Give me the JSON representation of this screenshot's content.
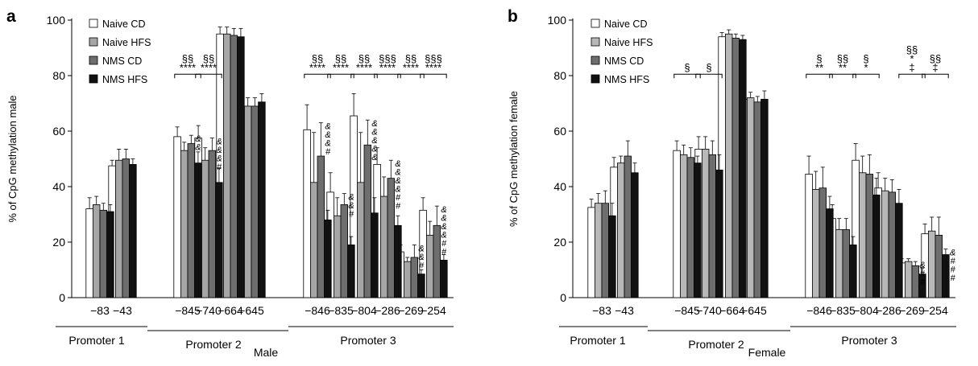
{
  "colors": {
    "male": [
      "#ffffff",
      "#a6a6a6",
      "#6e6e6e",
      "#111111"
    ],
    "female": [
      "#ffffff",
      "#b8b8b8",
      "#6e6e6e",
      "#111111"
    ]
  },
  "chart_data": [
    {
      "type": "bar",
      "panel_letter": "a",
      "title": "",
      "xlabel": "Male",
      "ylabel": "% of CpG methylation male",
      "ylim": [
        0,
        100
      ],
      "yticks": [
        0,
        20,
        40,
        60,
        80,
        100
      ],
      "legend_position": "top-left",
      "categories": [
        "−83",
        "−43",
        "−845",
        "−740",
        "−664",
        "−645",
        "−846",
        "−835",
        "−804",
        "−286",
        "−269",
        "−254"
      ],
      "series": [
        {
          "name": "Naive CD",
          "values": [
            32,
            47.5,
            58,
            57.5,
            95,
            69,
            60.5,
            38,
            65.5,
            48,
            16.5,
            31.5
          ],
          "errors": [
            4,
            2,
            3.5,
            4.5,
            2.5,
            3.5,
            9,
            7,
            8,
            6,
            2.5,
            4.5
          ]
        },
        {
          "name": "Naive HFS",
          "values": [
            33.5,
            49.5,
            53,
            49.5,
            95,
            69,
            41.5,
            29.5,
            41.5,
            36.5,
            13,
            22.5
          ],
          "errors": [
            3,
            4,
            3,
            4.5,
            2.5,
            3,
            18,
            6.5,
            18,
            7,
            1.5,
            5
          ]
        },
        {
          "name": "NMS CD",
          "values": [
            31.5,
            50,
            55.5,
            53,
            94.5,
            69,
            51,
            33.5,
            55,
            43,
            14.5,
            26
          ],
          "errors": [
            2.5,
            3.5,
            3,
            4.5,
            2.5,
            3,
            12,
            4,
            9,
            6.5,
            4.5,
            7
          ]
        },
        {
          "name": "NMS HFS",
          "values": [
            31,
            48,
            48.5,
            41.5,
            94,
            70.5,
            28,
            19,
            30.5,
            26,
            8.5,
            13.5
          ],
          "errors": [
            2.5,
            2,
            4,
            5,
            3,
            3,
            3.5,
            3,
            5.5,
            3.5,
            1.5,
            2
          ]
        }
      ],
      "comparison_brackets": [
        {
          "category_index": 2,
          "lines": [
            "§§",
            "****"
          ]
        },
        {
          "category_index": 3,
          "lines": [
            "§§",
            "****"
          ]
        },
        {
          "category_index": 6,
          "lines": [
            "§§",
            "****"
          ]
        },
        {
          "category_index": 7,
          "lines": [
            "§§",
            "****"
          ]
        },
        {
          "category_index": 8,
          "lines": [
            "§§",
            "****"
          ]
        },
        {
          "category_index": 9,
          "lines": [
            "§§§",
            "****"
          ]
        },
        {
          "category_index": 10,
          "lines": [
            "§§",
            "****"
          ]
        },
        {
          "category_index": 11,
          "lines": [
            "§§§",
            "****"
          ]
        }
      ],
      "bar_annotations": [
        {
          "category_index": 2,
          "series_index": 2,
          "symbols": [
            "&",
            "&"
          ]
        },
        {
          "category_index": 3,
          "series_index": 2,
          "symbols": [
            "&",
            "&",
            "&",
            "#"
          ]
        },
        {
          "category_index": 6,
          "series_index": 2,
          "symbols": [
            "&",
            "&",
            "&",
            "#"
          ]
        },
        {
          "category_index": 7,
          "series_index": 2,
          "symbols": [
            "&",
            "&",
            "#"
          ]
        },
        {
          "category_index": 8,
          "series_index": 2,
          "symbols": [
            "&",
            "&",
            "&",
            "&",
            "&"
          ]
        },
        {
          "category_index": 9,
          "series_index": 2,
          "symbols": [
            "&",
            "&",
            "&",
            "&",
            "#",
            "#"
          ]
        },
        {
          "category_index": 10,
          "series_index": 2,
          "symbols": [
            "&",
            "&",
            "#"
          ]
        },
        {
          "category_index": 11,
          "series_index": 2,
          "symbols": [
            "&",
            "&",
            "&",
            "&",
            "#",
            "#"
          ]
        }
      ],
      "promoter_groups": [
        {
          "label": "Promoter 1",
          "first": 0,
          "last": 1
        },
        {
          "label": "Promoter 2",
          "first": 2,
          "last": 5
        },
        {
          "label": "Promoter 3",
          "first": 6,
          "last": 11
        }
      ]
    },
    {
      "type": "bar",
      "panel_letter": "b",
      "title": "",
      "xlabel": "Female",
      "ylabel": "% of CpG methylation female",
      "ylim": [
        0,
        100
      ],
      "yticks": [
        0,
        20,
        40,
        60,
        80,
        100
      ],
      "legend_position": "top-left",
      "categories": [
        "−83",
        "−43",
        "−845",
        "−740",
        "−664",
        "−645",
        "−846",
        "−835",
        "−804",
        "−286",
        "−269",
        "−254"
      ],
      "series": [
        {
          "name": "Naive CD",
          "values": [
            32.5,
            47,
            53,
            53.5,
            94,
            71.5,
            44.5,
            28.5,
            49.5,
            39.5,
            12.5,
            23
          ],
          "errors": [
            3,
            3.5,
            3.5,
            4.5,
            1.5,
            2.5,
            6.5,
            5,
            6,
            5.5,
            1.5,
            3.5
          ]
        },
        {
          "name": "Naive HFS",
          "values": [
            34,
            48.5,
            51.5,
            53.5,
            95,
            72,
            39,
            24.5,
            45,
            38.5,
            13,
            24
          ],
          "errors": [
            3.5,
            2.5,
            3.5,
            4.5,
            1.5,
            2,
            6.5,
            4,
            6,
            4.5,
            1,
            5
          ]
        },
        {
          "name": "NMS CD",
          "values": [
            34,
            51,
            50.5,
            51.5,
            93.5,
            70.5,
            39.5,
            24.5,
            44.5,
            38,
            11.5,
            22.5
          ],
          "errors": [
            4.5,
            5.5,
            3.5,
            5,
            1.5,
            2,
            7.5,
            4,
            7,
            4.5,
            1.5,
            6.5
          ]
        },
        {
          "name": "NMS HFS",
          "values": [
            29.5,
            45,
            48.5,
            46,
            93,
            71.5,
            32,
            19,
            37,
            34,
            8.5,
            15.5
          ],
          "errors": [
            4.5,
            3.5,
            2.5,
            5.5,
            1.5,
            3,
            4.5,
            3,
            6,
            5,
            2,
            2
          ]
        }
      ],
      "comparison_brackets": [
        {
          "category_index": 2,
          "lines": [
            "§"
          ]
        },
        {
          "category_index": 3,
          "lines": [
            "§"
          ]
        },
        {
          "category_index": 6,
          "lines": [
            "§",
            "**"
          ]
        },
        {
          "category_index": 7,
          "lines": [
            "§§",
            "**"
          ]
        },
        {
          "category_index": 8,
          "lines": [
            "§",
            "*"
          ]
        },
        {
          "category_index": 10,
          "lines": [
            "§§",
            "*",
            "‡"
          ]
        },
        {
          "category_index": 11,
          "lines": [
            "§§",
            "‡"
          ]
        }
      ],
      "bar_annotations": [
        {
          "category_index": 10,
          "series_index": 2,
          "symbols": [
            "&",
            "#",
            "#"
          ]
        },
        {
          "category_index": 11,
          "series_index": 3,
          "symbols": [
            "&",
            "#",
            "#",
            "#"
          ]
        }
      ],
      "promoter_groups": [
        {
          "label": "Promoter 1",
          "first": 0,
          "last": 1
        },
        {
          "label": "Promoter 2",
          "first": 2,
          "last": 5
        },
        {
          "label": "Promoter 3",
          "first": 6,
          "last": 11
        }
      ]
    }
  ]
}
